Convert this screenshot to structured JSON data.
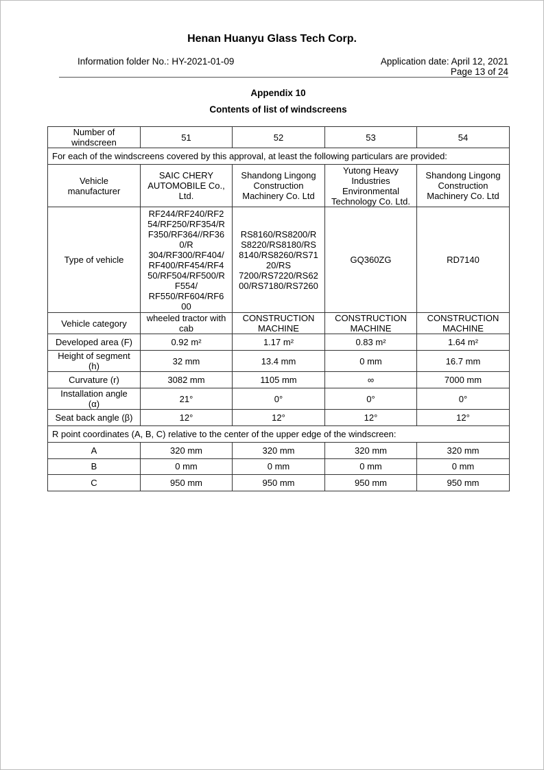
{
  "header": {
    "company": "Henan Huanyu Glass Tech Corp.",
    "folder": "Information folder No.: HY-2021-01-09",
    "date": "Application date: April 12, 2021",
    "page": "Page 13 of 24"
  },
  "title": {
    "appendix": "Appendix 10",
    "subtitle": "Contents of list of windscreens"
  },
  "table": {
    "number_label": "Number of\nwindscreen",
    "numbers": [
      "51",
      "52",
      "53",
      "54"
    ],
    "intro": "For each of the windscreens covered by this approval, at least the following particulars are provided:",
    "rows": [
      {
        "label": "Vehicle\nmanufacturer",
        "values": [
          "SAIC CHERY\nAUTOMOBILE Co.,\nLtd.",
          "Shandong Lingong\nConstruction\nMachinery Co. Ltd",
          "Yutong Heavy\nIndustries\nEnvironmental\nTechnology Co. Ltd.",
          "Shandong Lingong\nConstruction\nMachinery Co. Ltd"
        ]
      },
      {
        "label": "Type of vehicle",
        "values": [
          "RF244/RF240/RF2\n54/RF250/RF354/R\nF350/RF364//RF36\n0/R\n304/RF300/RF404/\nRF400/RF454/RF4\n50/RF504/RF500/R\nF554/\nRF550/RF604/RF6\n00",
          "RS8160/RS8200/R\nS8220/RS8180/RS\n8140/RS8260/RS71\n20/RS\n7200/RS7220/RS62\n00/RS7180/RS7260",
          "GQ360ZG",
          "RD7140"
        ]
      },
      {
        "label": "Vehicle category",
        "values": [
          "wheeled tractor with\ncab",
          "CONSTRUCTION\nMACHINE",
          "CONSTRUCTION\nMACHINE",
          "CONSTRUCTION\nMACHINE"
        ]
      },
      {
        "label": "Developed area (F)",
        "values": [
          "0.92 m²",
          "1.17 m²",
          "0.83 m²",
          "1.64 m²"
        ]
      },
      {
        "label": "Height of segment\n(h)",
        "values": [
          "32 mm",
          "13.4 mm",
          "0 mm",
          "16.7 mm"
        ]
      },
      {
        "label": "Curvature (r)",
        "values": [
          "3082 mm",
          "1105 mm",
          "∞",
          "7000 mm"
        ]
      },
      {
        "label": "Installation angle\n(α)",
        "values": [
          "21°",
          "0°",
          "0°",
          "0°"
        ]
      },
      {
        "label": "Seat back angle (β)",
        "values": [
          "12°",
          "12°",
          "12°",
          "12°"
        ]
      }
    ],
    "rpoint": "R point coordinates (A, B, C) relative to the center of the upper edge of the windscreen:",
    "coords": [
      {
        "label": "A",
        "values": [
          "320 mm",
          "320 mm",
          "320 mm",
          "320 mm"
        ]
      },
      {
        "label": "B",
        "values": [
          "0 mm",
          "0 mm",
          "0 mm",
          "0 mm"
        ]
      },
      {
        "label": "C",
        "values": [
          "950 mm",
          "950 mm",
          "950 mm",
          "950 mm"
        ]
      }
    ]
  }
}
